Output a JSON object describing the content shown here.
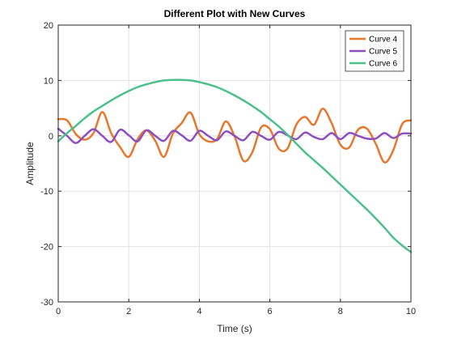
{
  "chart_data": {
    "type": "line",
    "title": "Different Plot with New Curves",
    "xlabel": "Time (s)",
    "ylabel": "Amplitude",
    "xlim": [
      0,
      10
    ],
    "ylim": [
      -30,
      20
    ],
    "xticks": [
      0,
      2,
      4,
      6,
      8,
      10
    ],
    "xtick_labels": [
      "0",
      "2",
      "4",
      "6",
      "8",
      "10"
    ],
    "yticks": [
      -30,
      -20,
      -10,
      0,
      10,
      20
    ],
    "ytick_labels": [
      "-30",
      "-20",
      "-10",
      "0",
      "10",
      "20"
    ],
    "grid": true,
    "legend_position": "top-right",
    "x": [
      0.0,
      0.25,
      0.5,
      0.75,
      1.0,
      1.25,
      1.5,
      1.75,
      2.0,
      2.25,
      2.5,
      2.75,
      3.0,
      3.25,
      3.5,
      3.75,
      4.0,
      4.25,
      4.5,
      4.75,
      5.0,
      5.25,
      5.5,
      5.75,
      6.0,
      6.25,
      6.5,
      6.75,
      7.0,
      7.25,
      7.5,
      7.75,
      8.0,
      8.25,
      8.5,
      8.75,
      9.0,
      9.25,
      9.5,
      9.75,
      10.0
    ],
    "series": [
      {
        "name": "Curve 4",
        "color": "#e8772e",
        "values": [
          3.0,
          2.8,
          0.3,
          -0.7,
          0.5,
          4.3,
          0.5,
          -2.0,
          -3.8,
          -0.6,
          1.0,
          -0.9,
          -3.8,
          0.4,
          2.3,
          4.2,
          0.3,
          -1.0,
          -0.6,
          2.6,
          -0.1,
          -4.5,
          -3.0,
          1.5,
          1.2,
          -2.3,
          -2.3,
          2.0,
          3.4,
          2.0,
          4.9,
          2.3,
          -1.6,
          -2.1,
          1.1,
          1.3,
          -1.4,
          -4.8,
          -2.6,
          2.1,
          2.8
        ]
      },
      {
        "name": "Curve 5",
        "color": "#8e4fbf",
        "values": [
          1.3,
          0.0,
          -1.3,
          0.0,
          1.2,
          0.0,
          -1.1,
          1.1,
          0.1,
          -1.0,
          1.0,
          0.0,
          -0.9,
          0.9,
          0.1,
          -0.9,
          0.9,
          0.0,
          -0.8,
          0.8,
          0.0,
          -0.8,
          0.7,
          0.0,
          -0.7,
          0.7,
          0.1,
          -0.6,
          0.6,
          -0.2,
          -0.6,
          0.5,
          -0.6,
          0.5,
          0.0,
          -0.5,
          -0.5,
          0.5,
          -0.4,
          0.4,
          0.4
        ]
      },
      {
        "name": "Curve 6",
        "color": "#4cbf8c",
        "values": [
          -1.0,
          0.5,
          1.8,
          3.2,
          4.4,
          5.4,
          6.4,
          7.3,
          8.1,
          8.8,
          9.3,
          9.7,
          10.0,
          10.1,
          10.1,
          10.0,
          9.7,
          9.3,
          8.8,
          8.1,
          7.3,
          6.4,
          5.4,
          4.3,
          3.0,
          1.7,
          0.2,
          -1.4,
          -3.0,
          -4.4,
          -5.8,
          -7.3,
          -8.8,
          -10.3,
          -11.8,
          -13.3,
          -14.9,
          -16.6,
          -18.4,
          -19.8,
          -21.0
        ]
      }
    ]
  }
}
